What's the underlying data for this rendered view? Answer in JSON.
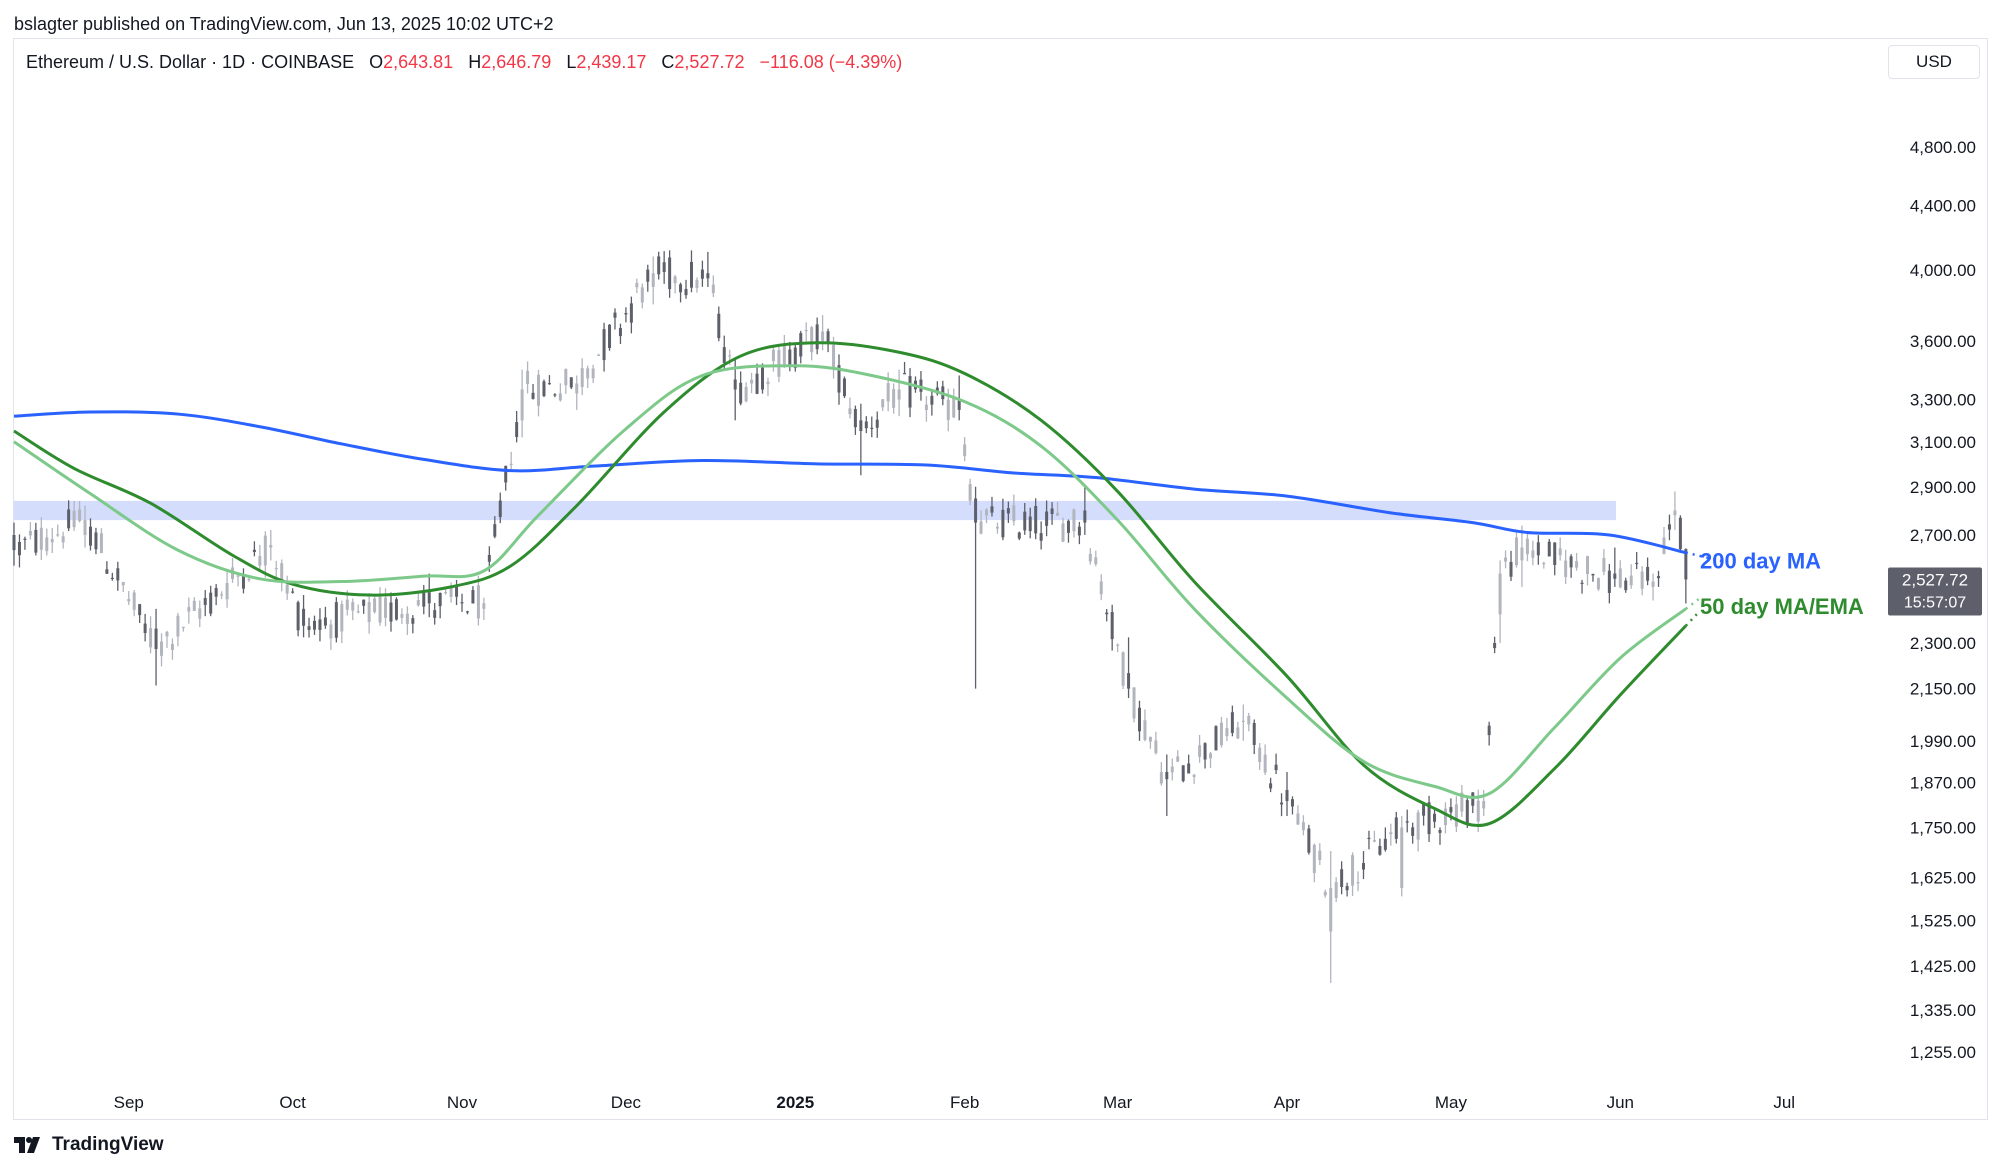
{
  "attribution": "bslagter published on TradingView.com, Jun 13, 2025 10:02 UTC+2",
  "legend": {
    "symbol": "Ethereum / U.S. Dollar · 1D · COINBASE",
    "open_label": "O",
    "open": "2,643.81",
    "high_label": "H",
    "high": "2,646.79",
    "low_label": "L",
    "low": "2,439.17",
    "close_label": "C",
    "close": "2,527.72",
    "change": "−116.08 (−4.39%)"
  },
  "currency": "USD",
  "price_tag": {
    "price": "2,527.72",
    "countdown": "15:57:07"
  },
  "footer": {
    "brand": "TradingView",
    "logo_icon": "tradingview-logo-icon"
  },
  "colors": {
    "up_candle": "#b2b5be",
    "down_candle": "#5d606b",
    "ma200": "#2962ff",
    "ma50": "#2e8b2e",
    "ema50": "#7dc98a",
    "resistance_band": "#c9d5fb"
  },
  "chart_data": {
    "type": "candlestick",
    "scale": "log",
    "ylim": [
      1200,
      5300
    ],
    "y_ticks": [
      {
        "value": 4800,
        "label": "4,800.00"
      },
      {
        "value": 4400,
        "label": "4,400.00"
      },
      {
        "value": 4000,
        "label": "4,000.00"
      },
      {
        "value": 3600,
        "label": "3,600.00"
      },
      {
        "value": 3300,
        "label": "3,300.00"
      },
      {
        "value": 3100,
        "label": "3,100.00"
      },
      {
        "value": 2900,
        "label": "2,900.00"
      },
      {
        "value": 2700,
        "label": "2,700.00"
      },
      {
        "value": 2300,
        "label": "2,300.00"
      },
      {
        "value": 2150,
        "label": "2,150.00"
      },
      {
        "value": 1990,
        "label": "1,990.00"
      },
      {
        "value": 1870,
        "label": "1,870.00"
      },
      {
        "value": 1750,
        "label": "1,750.00"
      },
      {
        "value": 1625,
        "label": "1,625.00"
      },
      {
        "value": 1525,
        "label": "1,525.00"
      },
      {
        "value": 1425,
        "label": "1,425.00"
      },
      {
        "value": 1335,
        "label": "1,335.00"
      },
      {
        "value": 1255,
        "label": "1,255.00"
      }
    ],
    "x_ticks": [
      {
        "date": "2024-09-01",
        "label": "Sep",
        "bold": false
      },
      {
        "date": "2024-10-01",
        "label": "Oct",
        "bold": false
      },
      {
        "date": "2024-11-01",
        "label": "Nov",
        "bold": false
      },
      {
        "date": "2024-12-01",
        "label": "Dec",
        "bold": false
      },
      {
        "date": "2025-01-01",
        "label": "2025",
        "bold": true
      },
      {
        "date": "2025-02-01",
        "label": "Feb",
        "bold": false
      },
      {
        "date": "2025-03-01",
        "label": "Mar",
        "bold": false
      },
      {
        "date": "2025-04-01",
        "label": "Apr",
        "bold": false
      },
      {
        "date": "2025-05-01",
        "label": "May",
        "bold": false
      },
      {
        "date": "2025-06-01",
        "label": "Jun",
        "bold": false
      },
      {
        "date": "2025-07-01",
        "label": "Jul",
        "bold": false
      }
    ],
    "x_range": [
      "2024-08-11",
      "2025-07-20"
    ],
    "resistance_zone": {
      "low": 2760,
      "high": 2840
    },
    "anchors": [
      {
        "date": "2024-08-11",
        "o": 2700,
        "h": 2750,
        "l": 2580,
        "c": 2640
      },
      {
        "date": "2024-08-24",
        "o": 2700,
        "h": 2820,
        "l": 2650,
        "c": 2760
      },
      {
        "date": "2024-09-06",
        "o": 2350,
        "h": 2420,
        "l": 2160,
        "c": 2280
      },
      {
        "date": "2024-09-27",
        "o": 2650,
        "h": 2720,
        "l": 2600,
        "c": 2660
      },
      {
        "date": "2024-10-03",
        "o": 2420,
        "h": 2470,
        "l": 2320,
        "c": 2360
      },
      {
        "date": "2024-10-26",
        "o": 2480,
        "h": 2550,
        "l": 2390,
        "c": 2440
      },
      {
        "date": "2024-11-05",
        "o": 2420,
        "h": 2460,
        "l": 2380,
        "c": 2440
      },
      {
        "date": "2024-11-12",
        "o": 3200,
        "h": 3450,
        "l": 3120,
        "c": 3350
      },
      {
        "date": "2024-11-22",
        "o": 3330,
        "h": 3420,
        "l": 3250,
        "c": 3380
      },
      {
        "date": "2024-12-06",
        "o": 3900,
        "h": 4080,
        "l": 3800,
        "c": 3980
      },
      {
        "date": "2024-12-16",
        "o": 3980,
        "h": 4108,
        "l": 3900,
        "c": 3950
      },
      {
        "date": "2024-12-21",
        "o": 3400,
        "h": 3500,
        "l": 3200,
        "c": 3350
      },
      {
        "date": "2025-01-06",
        "o": 3600,
        "h": 3740,
        "l": 3550,
        "c": 3650
      },
      {
        "date": "2025-01-13",
        "o": 3200,
        "h": 3280,
        "l": 2950,
        "c": 3150
      },
      {
        "date": "2025-01-20",
        "o": 3300,
        "h": 3450,
        "l": 3220,
        "c": 3350
      },
      {
        "date": "2025-01-31",
        "o": 3300,
        "h": 3420,
        "l": 3200,
        "c": 3250
      },
      {
        "date": "2025-02-03",
        "o": 2850,
        "h": 2900,
        "l": 2150,
        "c": 2750
      },
      {
        "date": "2025-02-23",
        "o": 2800,
        "h": 2900,
        "l": 2700,
        "c": 2750
      },
      {
        "date": "2025-03-03",
        "o": 2200,
        "h": 2320,
        "l": 2120,
        "c": 2150
      },
      {
        "date": "2025-03-10",
        "o": 1900,
        "h": 1950,
        "l": 1780,
        "c": 1880
      },
      {
        "date": "2025-03-24",
        "o": 2050,
        "h": 2100,
        "l": 1990,
        "c": 2050
      },
      {
        "date": "2025-04-01",
        "o": 1850,
        "h": 1900,
        "l": 1780,
        "c": 1820
      },
      {
        "date": "2025-04-09",
        "o": 1500,
        "h": 1690,
        "l": 1390,
        "c": 1600
      },
      {
        "date": "2025-04-22",
        "o": 1600,
        "h": 1780,
        "l": 1580,
        "c": 1750
      },
      {
        "date": "2025-05-07",
        "o": 1800,
        "h": 1850,
        "l": 1780,
        "c": 1820
      },
      {
        "date": "2025-05-10",
        "o": 2400,
        "h": 2600,
        "l": 2300,
        "c": 2550
      },
      {
        "date": "2025-05-14",
        "o": 2600,
        "h": 2738,
        "l": 2500,
        "c": 2650
      },
      {
        "date": "2025-05-31",
        "o": 2550,
        "h": 2650,
        "l": 2500,
        "c": 2530
      },
      {
        "date": "2025-06-07",
        "o": 2500,
        "h": 2550,
        "l": 2450,
        "c": 2520
      },
      {
        "date": "2025-06-11",
        "o": 2780,
        "h": 2880,
        "l": 2720,
        "c": 2800
      },
      {
        "date": "2025-06-12",
        "o": 2770,
        "h": 2780,
        "l": 2630,
        "c": 2643.81
      },
      {
        "date": "2025-06-13",
        "o": 2643.81,
        "h": 2646.79,
        "l": 2439.17,
        "c": 2527.72
      }
    ],
    "series": [
      {
        "name": "200 day MA",
        "color": "#2962ff",
        "points": [
          [
            "2024-08-11",
            3220
          ],
          [
            "2024-08-25",
            3240
          ],
          [
            "2024-09-10",
            3230
          ],
          [
            "2024-09-25",
            3170
          ],
          [
            "2024-10-10",
            3090
          ],
          [
            "2024-10-25",
            3020
          ],
          [
            "2024-11-10",
            2970
          ],
          [
            "2024-11-25",
            2990
          ],
          [
            "2024-12-15",
            3015
          ],
          [
            "2025-01-05",
            3000
          ],
          [
            "2025-01-25",
            2995
          ],
          [
            "2025-02-10",
            2960
          ],
          [
            "2025-02-25",
            2940
          ],
          [
            "2025-03-15",
            2890
          ],
          [
            "2025-04-01",
            2860
          ],
          [
            "2025-04-20",
            2790
          ],
          [
            "2025-05-05",
            2750
          ],
          [
            "2025-05-15",
            2710
          ],
          [
            "2025-05-30",
            2700
          ],
          [
            "2025-06-13",
            2630
          ]
        ],
        "projection_to": "2025-06-20"
      },
      {
        "name": "50 day MA",
        "color": "#2e8b2e",
        "points": [
          [
            "2024-08-11",
            3150
          ],
          [
            "2024-08-22",
            2980
          ],
          [
            "2024-09-05",
            2830
          ],
          [
            "2024-09-20",
            2620
          ],
          [
            "2024-10-01",
            2510
          ],
          [
            "2024-10-15",
            2470
          ],
          [
            "2024-10-30",
            2500
          ],
          [
            "2024-11-10",
            2580
          ],
          [
            "2024-11-22",
            2820
          ],
          [
            "2024-12-08",
            3240
          ],
          [
            "2024-12-22",
            3520
          ],
          [
            "2025-01-05",
            3590
          ],
          [
            "2025-01-20",
            3540
          ],
          [
            "2025-02-01",
            3430
          ],
          [
            "2025-02-15",
            3200
          ],
          [
            "2025-03-01",
            2880
          ],
          [
            "2025-03-15",
            2520
          ],
          [
            "2025-04-01",
            2190
          ],
          [
            "2025-04-15",
            1920
          ],
          [
            "2025-04-28",
            1800
          ],
          [
            "2025-05-08",
            1760
          ],
          [
            "2025-05-20",
            1910
          ],
          [
            "2025-06-01",
            2130
          ],
          [
            "2025-06-13",
            2360
          ]
        ],
        "projection_to": "2025-06-15"
      },
      {
        "name": "50 day EMA",
        "color": "#7dc98a",
        "points": [
          [
            "2024-08-11",
            3100
          ],
          [
            "2024-08-25",
            2870
          ],
          [
            "2024-09-10",
            2640
          ],
          [
            "2024-09-25",
            2530
          ],
          [
            "2024-10-10",
            2520
          ],
          [
            "2024-10-25",
            2540
          ],
          [
            "2024-11-05",
            2560
          ],
          [
            "2024-11-15",
            2780
          ],
          [
            "2024-12-01",
            3160
          ],
          [
            "2024-12-15",
            3420
          ],
          [
            "2025-01-01",
            3470
          ],
          [
            "2025-01-15",
            3420
          ],
          [
            "2025-02-01",
            3290
          ],
          [
            "2025-02-15",
            3080
          ],
          [
            "2025-03-01",
            2760
          ],
          [
            "2025-03-15",
            2420
          ],
          [
            "2025-04-01",
            2120
          ],
          [
            "2025-04-15",
            1930
          ],
          [
            "2025-04-28",
            1860
          ],
          [
            "2025-05-08",
            1840
          ],
          [
            "2025-05-20",
            2030
          ],
          [
            "2025-06-01",
            2250
          ],
          [
            "2025-06-13",
            2420
          ]
        ],
        "projection_to": "2025-06-16"
      }
    ],
    "annotations": [
      {
        "text": "200 day MA",
        "color": "#2962ff",
        "price": 2600
      },
      {
        "text": "50 day MA/EMA",
        "color": "#2e8b2e",
        "price": 2430
      }
    ]
  }
}
